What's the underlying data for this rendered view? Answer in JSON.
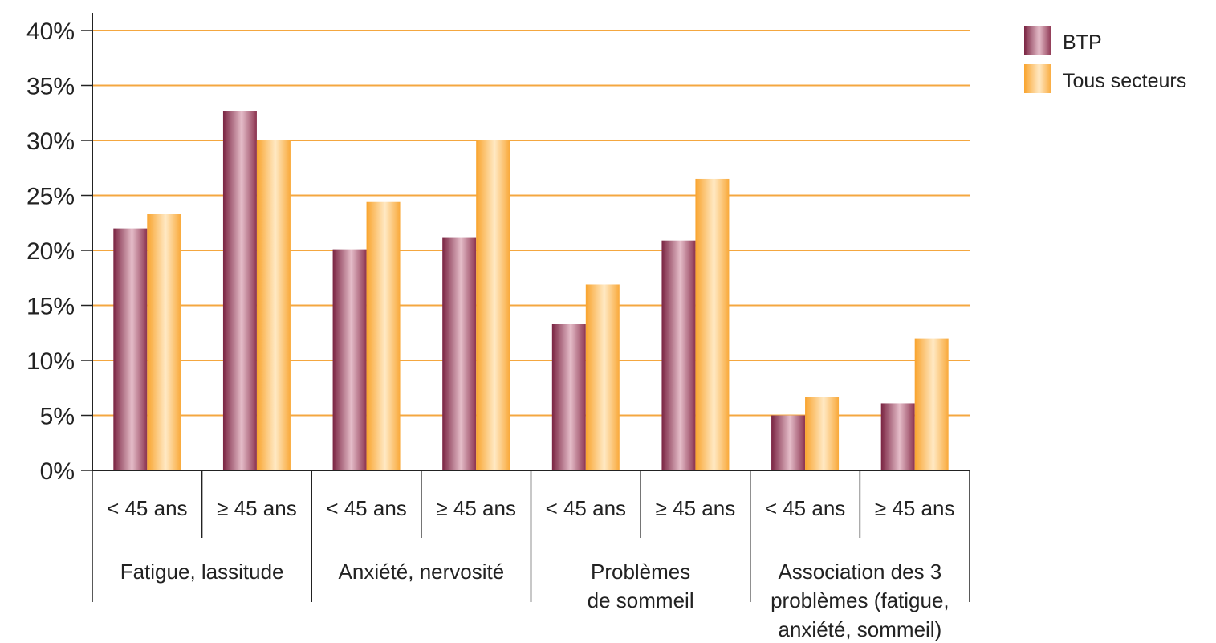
{
  "chart_data": {
    "type": "bar",
    "ylim": [
      0,
      40
    ],
    "yticks": [
      "0%",
      "5%",
      "10%",
      "15%",
      "20%",
      "25%",
      "30%",
      "35%",
      "40%"
    ],
    "grid": true,
    "legend_position": "top-right",
    "groups": [
      {
        "label": [
          "Fatigue, lassitude"
        ],
        "categories": [
          "< 45 ans",
          "≥ 45 ans"
        ]
      },
      {
        "label": [
          "Anxiété, nervosité"
        ],
        "categories": [
          "< 45 ans",
          "≥ 45 ans"
        ]
      },
      {
        "label": [
          "Problèmes",
          "de sommeil"
        ],
        "categories": [
          "< 45 ans",
          "≥ 45 ans"
        ]
      },
      {
        "label": [
          "Association des 3",
          "problèmes (fatigue,",
          "anxiété, sommeil)"
        ],
        "categories": [
          "< 45 ans",
          "≥ 45 ans"
        ]
      }
    ],
    "series": [
      {
        "name": "BTP",
        "color": "#8c3450",
        "values": [
          22.0,
          32.7,
          20.1,
          21.2,
          13.3,
          20.9,
          5.0,
          6.1
        ]
      },
      {
        "name": "Tous secteurs",
        "color": "#f9a93a",
        "values": [
          23.3,
          30.0,
          24.4,
          30.0,
          16.9,
          26.5,
          6.7,
          12.0
        ]
      }
    ],
    "colors": {
      "grid": "#f4a740",
      "axis": "#222222",
      "text": "#222222"
    }
  }
}
